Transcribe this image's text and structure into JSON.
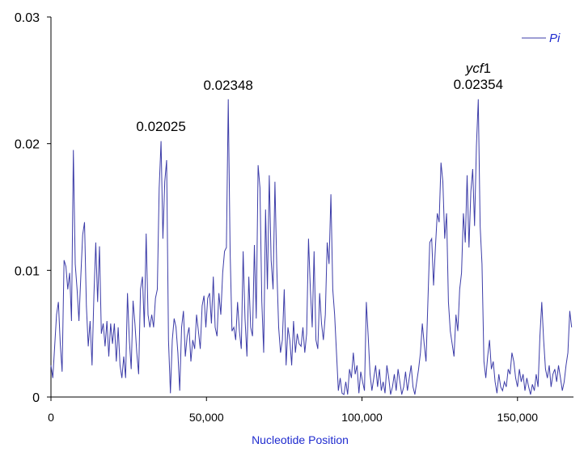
{
  "chart_data": {
    "type": "line",
    "title": "",
    "xlabel": "Nucleotide Position",
    "ylabel": "",
    "xlim": [
      0,
      168000
    ],
    "ylim": [
      0,
      0.03
    ],
    "grid": false,
    "legend_position": "top-right",
    "x_ticks": [
      0,
      50000,
      100000,
      150000
    ],
    "x_tick_labels": [
      "0",
      "50,000",
      "100,000",
      "150,000"
    ],
    "y_ticks": [
      0,
      0.01,
      0.02,
      0.03
    ],
    "y_tick_labels": [
      "0",
      "0.01",
      "0.02",
      "0.03"
    ],
    "series": [
      {
        "name": "Pi",
        "color": "#3c3ca8",
        "points": [
          [
            0,
            0.0025
          ],
          [
            600,
            0.0015
          ],
          [
            1200,
            0.004
          ],
          [
            1800,
            0.0065
          ],
          [
            2400,
            0.0075
          ],
          [
            3000,
            0.0042
          ],
          [
            3600,
            0.002
          ],
          [
            4200,
            0.0108
          ],
          [
            4800,
            0.0103
          ],
          [
            5400,
            0.0085
          ],
          [
            6000,
            0.0098
          ],
          [
            6600,
            0.006
          ],
          [
            7200,
            0.0195
          ],
          [
            7800,
            0.0105
          ],
          [
            8400,
            0.0085
          ],
          [
            9000,
            0.006
          ],
          [
            9600,
            0.0095
          ],
          [
            10200,
            0.0128
          ],
          [
            10800,
            0.0138
          ],
          [
            11400,
            0.0072
          ],
          [
            12000,
            0.004
          ],
          [
            12600,
            0.006
          ],
          [
            13200,
            0.0025
          ],
          [
            13800,
            0.008
          ],
          [
            14400,
            0.0122
          ],
          [
            15000,
            0.0075
          ],
          [
            15600,
            0.0119
          ],
          [
            16200,
            0.005
          ],
          [
            16800,
            0.0058
          ],
          [
            17400,
            0.004
          ],
          [
            18000,
            0.006
          ],
          [
            18600,
            0.0032
          ],
          [
            19200,
            0.0058
          ],
          [
            19800,
            0.0042
          ],
          [
            20400,
            0.0058
          ],
          [
            21000,
            0.0028
          ],
          [
            21600,
            0.0055
          ],
          [
            22200,
            0.0025
          ],
          [
            22800,
            0.0015
          ],
          [
            23400,
            0.0032
          ],
          [
            24000,
            0.0015
          ],
          [
            24600,
            0.0082
          ],
          [
            25200,
            0.0045
          ],
          [
            25800,
            0.0022
          ],
          [
            26400,
            0.0076
          ],
          [
            27000,
            0.0058
          ],
          [
            27600,
            0.0035
          ],
          [
            28200,
            0.0018
          ],
          [
            28800,
            0.0085
          ],
          [
            29400,
            0.0095
          ],
          [
            30000,
            0.0055
          ],
          [
            30600,
            0.0129
          ],
          [
            31200,
            0.0065
          ],
          [
            31800,
            0.0055
          ],
          [
            32400,
            0.0065
          ],
          [
            33000,
            0.0055
          ],
          [
            33600,
            0.0078
          ],
          [
            34200,
            0.0085
          ],
          [
            34800,
            0.0165
          ],
          [
            35400,
            0.0202
          ],
          [
            36000,
            0.0125
          ],
          [
            36600,
            0.017
          ],
          [
            37200,
            0.0187
          ],
          [
            37800,
            0.0045
          ],
          [
            38400,
            0.0003
          ],
          [
            39000,
            0.0045
          ],
          [
            39600,
            0.0062
          ],
          [
            40200,
            0.0055
          ],
          [
            40800,
            0.0035
          ],
          [
            41400,
            0.0005
          ],
          [
            42000,
            0.0055
          ],
          [
            42600,
            0.0068
          ],
          [
            43200,
            0.0032
          ],
          [
            43800,
            0.0048
          ],
          [
            44400,
            0.0055
          ],
          [
            45000,
            0.0028
          ],
          [
            45600,
            0.0045
          ],
          [
            46200,
            0.0038
          ],
          [
            46800,
            0.0065
          ],
          [
            47400,
            0.0052
          ],
          [
            48000,
            0.0038
          ],
          [
            48600,
            0.0072
          ],
          [
            49200,
            0.008
          ],
          [
            49800,
            0.0055
          ],
          [
            50400,
            0.0078
          ],
          [
            51000,
            0.0082
          ],
          [
            51600,
            0.0058
          ],
          [
            52200,
            0.0095
          ],
          [
            52800,
            0.0055
          ],
          [
            53400,
            0.0048
          ],
          [
            54000,
            0.0082
          ],
          [
            54600,
            0.0065
          ],
          [
            55200,
            0.0098
          ],
          [
            55800,
            0.0115
          ],
          [
            56400,
            0.0118
          ],
          [
            57000,
            0.0235
          ],
          [
            57600,
            0.0115
          ],
          [
            58200,
            0.0052
          ],
          [
            58800,
            0.0055
          ],
          [
            59400,
            0.0045
          ],
          [
            60000,
            0.0075
          ],
          [
            60600,
            0.0052
          ],
          [
            61200,
            0.0038
          ],
          [
            61800,
            0.0115
          ],
          [
            62400,
            0.0062
          ],
          [
            63000,
            0.0032
          ],
          [
            63600,
            0.0095
          ],
          [
            64200,
            0.0055
          ],
          [
            64800,
            0.0048
          ],
          [
            65400,
            0.012
          ],
          [
            66000,
            0.0062
          ],
          [
            66600,
            0.0183
          ],
          [
            67200,
            0.0165
          ],
          [
            67800,
            0.0075
          ],
          [
            68400,
            0.0035
          ],
          [
            69000,
            0.0148
          ],
          [
            69600,
            0.0085
          ],
          [
            70200,
            0.0175
          ],
          [
            70800,
            0.0108
          ],
          [
            71400,
            0.0085
          ],
          [
            72000,
            0.017
          ],
          [
            72600,
            0.0102
          ],
          [
            73200,
            0.0055
          ],
          [
            73800,
            0.0035
          ],
          [
            74400,
            0.0045
          ],
          [
            75000,
            0.0085
          ],
          [
            75600,
            0.0025
          ],
          [
            76200,
            0.0055
          ],
          [
            76800,
            0.0045
          ],
          [
            77400,
            0.0025
          ],
          [
            78000,
            0.006
          ],
          [
            78600,
            0.0035
          ],
          [
            79200,
            0.005
          ],
          [
            79800,
            0.0042
          ],
          [
            80400,
            0.004
          ],
          [
            81000,
            0.0055
          ],
          [
            81600,
            0.0035
          ],
          [
            82200,
            0.005
          ],
          [
            82800,
            0.0125
          ],
          [
            83400,
            0.0085
          ],
          [
            84000,
            0.0055
          ],
          [
            84600,
            0.0115
          ],
          [
            85200,
            0.0045
          ],
          [
            85800,
            0.0038
          ],
          [
            86400,
            0.0082
          ],
          [
            87000,
            0.0058
          ],
          [
            87600,
            0.0045
          ],
          [
            88200,
            0.0065
          ],
          [
            88800,
            0.0122
          ],
          [
            89400,
            0.0105
          ],
          [
            90000,
            0.016
          ],
          [
            90600,
            0.0085
          ],
          [
            91200,
            0.0065
          ],
          [
            91800,
            0.0035
          ],
          [
            92400,
            0.0005
          ],
          [
            93000,
            0.0015
          ],
          [
            93600,
            0.0003
          ],
          [
            94200,
            0.0002
          ],
          [
            94800,
            0.0012
          ],
          [
            95400,
            0.0002
          ],
          [
            96000,
            0.0022
          ],
          [
            96600,
            0.0015
          ],
          [
            97200,
            0.0035
          ],
          [
            97800,
            0.0018
          ],
          [
            98400,
            0.0025
          ],
          [
            99000,
            0.0003
          ],
          [
            99600,
            0.002
          ],
          [
            100200,
            0.0012
          ],
          [
            100800,
            0.0005
          ],
          [
            101400,
            0.0075
          ],
          [
            102000,
            0.0048
          ],
          [
            102600,
            0.0018
          ],
          [
            103200,
            0.0005
          ],
          [
            103800,
            0.0015
          ],
          [
            104400,
            0.0025
          ],
          [
            105000,
            0.0008
          ],
          [
            105600,
            0.0022
          ],
          [
            106200,
            0.0005
          ],
          [
            106800,
            0.0012
          ],
          [
            107400,
            0.0003
          ],
          [
            108000,
            0.0025
          ],
          [
            108600,
            0.0015
          ],
          [
            109200,
            0.0002
          ],
          [
            109800,
            0.0008
          ],
          [
            110400,
            0.0018
          ],
          [
            111000,
            0.0005
          ],
          [
            111600,
            0.0022
          ],
          [
            112200,
            0.0012
          ],
          [
            112800,
            0.0002
          ],
          [
            113400,
            0.0008
          ],
          [
            114000,
            0.002
          ],
          [
            114600,
            0.0005
          ],
          [
            115200,
            0.0015
          ],
          [
            115800,
            0.0025
          ],
          [
            116400,
            0.0008
          ],
          [
            117000,
            0.0002
          ],
          [
            117600,
            0.0012
          ],
          [
            118200,
            0.0022
          ],
          [
            118800,
            0.0035
          ],
          [
            119400,
            0.0058
          ],
          [
            120000,
            0.0042
          ],
          [
            120600,
            0.0028
          ],
          [
            121200,
            0.0075
          ],
          [
            121800,
            0.0122
          ],
          [
            122400,
            0.0125
          ],
          [
            123000,
            0.0088
          ],
          [
            123600,
            0.0118
          ],
          [
            124200,
            0.0145
          ],
          [
            124800,
            0.0138
          ],
          [
            125400,
            0.0185
          ],
          [
            126000,
            0.017
          ],
          [
            126600,
            0.0125
          ],
          [
            127200,
            0.0145
          ],
          [
            127800,
            0.0075
          ],
          [
            128400,
            0.0052
          ],
          [
            129000,
            0.0042
          ],
          [
            129600,
            0.0032
          ],
          [
            130200,
            0.0065
          ],
          [
            130800,
            0.0052
          ],
          [
            131400,
            0.0085
          ],
          [
            132000,
            0.0098
          ],
          [
            132600,
            0.0145
          ],
          [
            133200,
            0.0122
          ],
          [
            133800,
            0.0175
          ],
          [
            134400,
            0.0118
          ],
          [
            135000,
            0.0162
          ],
          [
            135600,
            0.018
          ],
          [
            136200,
            0.0135
          ],
          [
            136800,
            0.0198
          ],
          [
            137400,
            0.0235
          ],
          [
            138000,
            0.0135
          ],
          [
            138600,
            0.0105
          ],
          [
            139200,
            0.0028
          ],
          [
            139800,
            0.0015
          ],
          [
            140400,
            0.0032
          ],
          [
            141000,
            0.0045
          ],
          [
            141600,
            0.0022
          ],
          [
            142200,
            0.0028
          ],
          [
            142800,
            0.0012
          ],
          [
            143400,
            0.0003
          ],
          [
            144000,
            0.0018
          ],
          [
            144600,
            0.0008
          ],
          [
            145200,
            0.0005
          ],
          [
            145800,
            0.0012
          ],
          [
            146400,
            0.0008
          ],
          [
            147000,
            0.0022
          ],
          [
            147600,
            0.0018
          ],
          [
            148200,
            0.0035
          ],
          [
            148800,
            0.0028
          ],
          [
            149400,
            0.0015
          ],
          [
            150000,
            0.0008
          ],
          [
            150600,
            0.0022
          ],
          [
            151200,
            0.0012
          ],
          [
            151800,
            0.0018
          ],
          [
            152400,
            0.0005
          ],
          [
            153000,
            0.0015
          ],
          [
            153600,
            0.0008
          ],
          [
            154200,
            0.0002
          ],
          [
            154800,
            0.001
          ],
          [
            155400,
            0.0005
          ],
          [
            156000,
            0.0018
          ],
          [
            156600,
            0.0008
          ],
          [
            157200,
            0.0048
          ],
          [
            157800,
            0.0075
          ],
          [
            158400,
            0.0045
          ],
          [
            159000,
            0.0022
          ],
          [
            159600,
            0.0015
          ],
          [
            160200,
            0.0025
          ],
          [
            160800,
            0.0008
          ],
          [
            161400,
            0.0018
          ],
          [
            162000,
            0.0022
          ],
          [
            162600,
            0.0012
          ],
          [
            163200,
            0.0025
          ],
          [
            163800,
            0.0015
          ],
          [
            164400,
            0.0005
          ],
          [
            165000,
            0.0012
          ],
          [
            165600,
            0.0025
          ],
          [
            166200,
            0.0035
          ],
          [
            166800,
            0.0068
          ],
          [
            167400,
            0.0055
          ]
        ]
      }
    ],
    "annotations": [
      {
        "x": 35400,
        "y": 0.02025,
        "gene": "",
        "text": "0.02025"
      },
      {
        "x": 57000,
        "y": 0.02348,
        "gene": "",
        "text": "0.02348"
      },
      {
        "x": 137400,
        "y": 0.02354,
        "gene": "ycf1",
        "text": "0.02354"
      }
    ]
  }
}
